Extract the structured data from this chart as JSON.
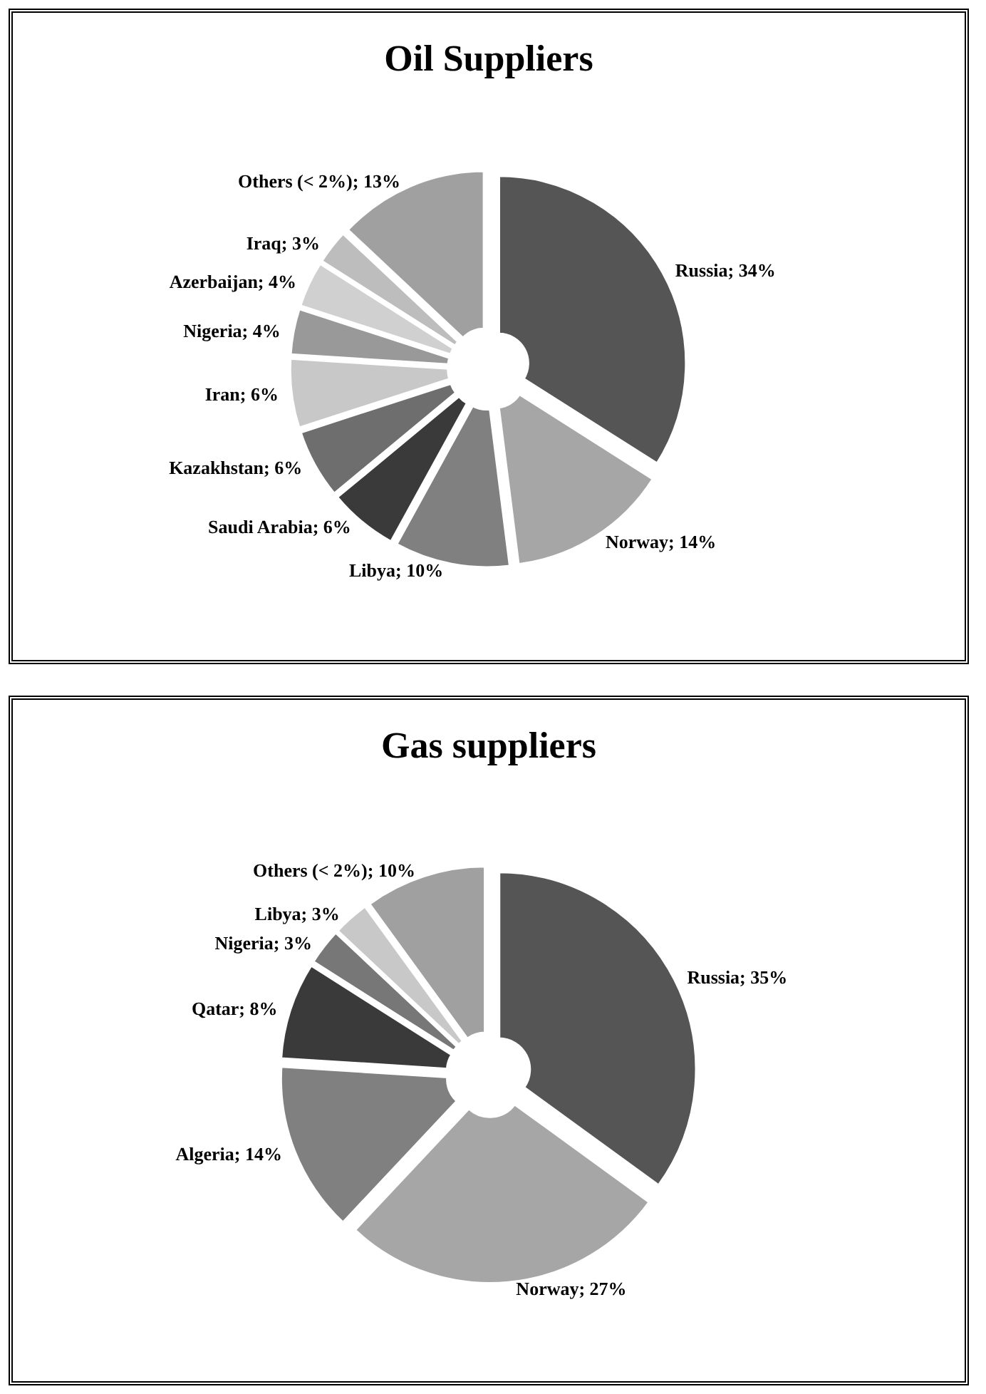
{
  "chart_data": [
    {
      "type": "donut",
      "title": "Oil Suppliers",
      "categories": [
        "Russia",
        "Norway",
        "Libya",
        "Saudi Arabia",
        "Kazakhstan",
        "Iran",
        "Nigeria",
        "Azerbaijan",
        "Iraq",
        "Others (< 2%)"
      ],
      "values": [
        34,
        14,
        10,
        6,
        6,
        6,
        4,
        4,
        3,
        13
      ],
      "value_labels": [
        "34%",
        "14%",
        "10%",
        "6%",
        "6%",
        "6%",
        "4%",
        "4%",
        "3%",
        "13%"
      ],
      "colors": [
        "#555555",
        "#a6a6a6",
        "#808080",
        "#3a3a3a",
        "#6e6e6e",
        "#c8c8c8",
        "#999999",
        "#d0d0d0",
        "#bdbdbd",
        "#a0a0a0"
      ]
    },
    {
      "type": "donut",
      "title": "Gas suppliers",
      "categories": [
        "Russia",
        "Norway",
        "Algeria",
        "Qatar",
        "Nigeria",
        "Libya",
        "Others (< 2%)"
      ],
      "values": [
        35,
        27,
        14,
        8,
        3,
        3,
        10
      ],
      "value_labels": [
        "35%",
        "27%",
        "14%",
        "8%",
        "3%",
        "3%",
        "10%"
      ],
      "colors": [
        "#555555",
        "#a6a6a6",
        "#808080",
        "#3a3a3a",
        "#777777",
        "#c8c8c8",
        "#a0a0a0"
      ]
    }
  ]
}
